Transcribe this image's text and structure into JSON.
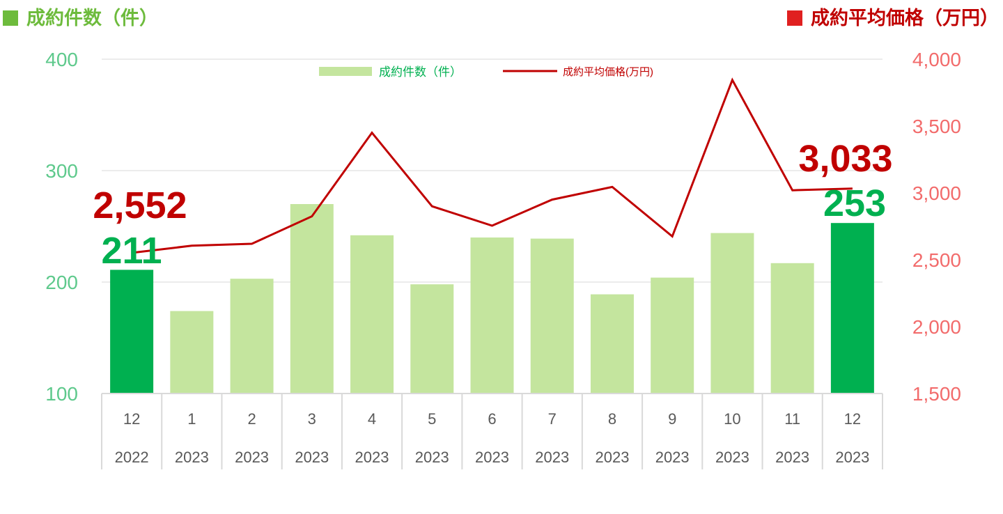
{
  "header": {
    "left_title": "成約件数（件）",
    "right_title": "成約平均価格（万円）",
    "left_color": "#6dbb3c",
    "right_color": "#c00000"
  },
  "chart_data": {
    "type": "bar",
    "categories": [
      {
        "month": "12",
        "year": "2022"
      },
      {
        "month": "1",
        "year": "2023"
      },
      {
        "month": "2",
        "year": "2023"
      },
      {
        "month": "3",
        "year": "2023"
      },
      {
        "month": "4",
        "year": "2023"
      },
      {
        "month": "5",
        "year": "2023"
      },
      {
        "month": "6",
        "year": "2023"
      },
      {
        "month": "7",
        "year": "2023"
      },
      {
        "month": "8",
        "year": "2023"
      },
      {
        "month": "9",
        "year": "2023"
      },
      {
        "month": "10",
        "year": "2023"
      },
      {
        "month": "11",
        "year": "2023"
      },
      {
        "month": "12",
        "year": "2023"
      }
    ],
    "series": [
      {
        "name": "成約件数（件）",
        "type": "bar",
        "axis": "left",
        "color": "#c4e59e",
        "highlight_color": "#00b050",
        "highlight_indices": [
          0,
          12
        ],
        "values": [
          211,
          174,
          203,
          270,
          242,
          198,
          240,
          239,
          189,
          204,
          244,
          217,
          253
        ]
      },
      {
        "name": "成約平均価格(万円)",
        "type": "line",
        "axis": "right",
        "color": "#c00000",
        "values": [
          2552,
          2605,
          2620,
          2825,
          3450,
          2900,
          2755,
          2950,
          3045,
          2675,
          3845,
          3020,
          3033
        ]
      }
    ],
    "y_left": {
      "min": 100,
      "max": 400,
      "ticks": [
        "100",
        "200",
        "300",
        "400"
      ],
      "color": "#5ec98c"
    },
    "y_right": {
      "min": 1500,
      "max": 4000,
      "ticks": [
        "1,500",
        "2,000",
        "2,500",
        "3,000",
        "3,500",
        "4,000"
      ],
      "color": "#f26b6b"
    },
    "data_labels": [
      {
        "series": 0,
        "index": 0,
        "text": "211",
        "color": "#00b050"
      },
      {
        "series": 0,
        "index": 12,
        "text": "253",
        "color": "#00b050"
      },
      {
        "series": 1,
        "index": 0,
        "text": "2,552",
        "color": "#c00000"
      },
      {
        "series": 1,
        "index": 12,
        "text": "3,033",
        "color": "#c00000"
      }
    ],
    "legend_position": "top-center",
    "legend_label_colors": [
      "#00b050",
      "#c00000"
    ],
    "grid": true
  }
}
